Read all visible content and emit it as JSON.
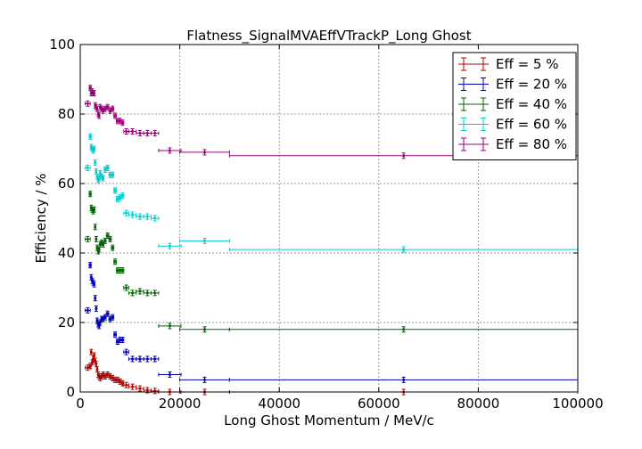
{
  "chart_data": {
    "type": "scatter",
    "title": "Flatness_SignalMVAEffVTrackP_Long Ghost",
    "xlabel": "Long Ghost Momentum / MeV/c",
    "ylabel": "Efficiency / %",
    "xlim": [
      0,
      100000
    ],
    "ylim": [
      0,
      100
    ],
    "xticks": [
      "0",
      "20000",
      "40000",
      "60000",
      "80000",
      "100000"
    ],
    "yticks": [
      "0",
      "20",
      "40",
      "60",
      "80",
      "100"
    ],
    "grid": true,
    "legend_position": "top-right",
    "series": [
      {
        "name": "Eff = 5 %",
        "color": "#b30000",
        "points": [
          [
            1500,
            7.0,
            500
          ],
          [
            2000,
            7.5,
            200
          ],
          [
            2200,
            11.5,
            100
          ],
          [
            2400,
            8.5,
            100
          ],
          [
            2600,
            9.5,
            100
          ],
          [
            2800,
            10.5,
            100
          ],
          [
            3000,
            9.0,
            100
          ],
          [
            3200,
            8.0,
            100
          ],
          [
            3400,
            6.5,
            100
          ],
          [
            3600,
            5.0,
            100
          ],
          [
            3800,
            4.5,
            100
          ],
          [
            4000,
            4.0,
            100
          ],
          [
            4300,
            4.5,
            150
          ],
          [
            4600,
            5.0,
            150
          ],
          [
            5000,
            4.5,
            200
          ],
          [
            5500,
            5.0,
            250
          ],
          [
            6000,
            4.5,
            250
          ],
          [
            6500,
            4.0,
            250
          ],
          [
            7000,
            3.5,
            250
          ],
          [
            7500,
            3.5,
            250
          ],
          [
            8000,
            3.0,
            250
          ],
          [
            8500,
            2.5,
            250
          ],
          [
            9250,
            2.0,
            500
          ],
          [
            10500,
            1.5,
            750
          ],
          [
            12000,
            1.0,
            750
          ],
          [
            13500,
            0.5,
            750
          ],
          [
            15000,
            0.3,
            750
          ],
          [
            18000,
            0.0,
            2250
          ],
          [
            25000,
            0.0,
            5000
          ],
          [
            65000,
            0.0,
            35000
          ]
        ]
      },
      {
        "name": "Eff = 20 %",
        "color": "#0000b3",
        "points": [
          [
            1500,
            23.5,
            500
          ],
          [
            2000,
            36.5,
            200
          ],
          [
            2200,
            33.0,
            100
          ],
          [
            2400,
            32.0,
            100
          ],
          [
            2600,
            31.5,
            100
          ],
          [
            2800,
            31.0,
            100
          ],
          [
            3000,
            27.0,
            100
          ],
          [
            3200,
            24.0,
            100
          ],
          [
            3400,
            20.5,
            100
          ],
          [
            3600,
            19.5,
            100
          ],
          [
            3800,
            19.0,
            100
          ],
          [
            4000,
            20.0,
            100
          ],
          [
            4300,
            21.0,
            150
          ],
          [
            4600,
            21.0,
            150
          ],
          [
            5000,
            21.5,
            200
          ],
          [
            5500,
            22.5,
            250
          ],
          [
            6000,
            21.0,
            250
          ],
          [
            6500,
            21.5,
            250
          ],
          [
            7000,
            16.5,
            250
          ],
          [
            7500,
            14.5,
            250
          ],
          [
            8000,
            15.0,
            250
          ],
          [
            8500,
            15.0,
            250
          ],
          [
            9250,
            11.5,
            500
          ],
          [
            10500,
            9.5,
            750
          ],
          [
            12000,
            9.5,
            750
          ],
          [
            13500,
            9.5,
            750
          ],
          [
            15000,
            9.5,
            750
          ],
          [
            18000,
            5.0,
            2250
          ],
          [
            25000,
            3.5,
            5000
          ],
          [
            65000,
            3.5,
            35000
          ]
        ]
      },
      {
        "name": "Eff = 40 %",
        "color": "#006400",
        "points": [
          [
            1500,
            44.0,
            500
          ],
          [
            2000,
            57.0,
            200
          ],
          [
            2200,
            53.0,
            100
          ],
          [
            2400,
            52.5,
            100
          ],
          [
            2600,
            52.0,
            100
          ],
          [
            2800,
            52.5,
            100
          ],
          [
            3000,
            47.5,
            100
          ],
          [
            3200,
            44.0,
            100
          ],
          [
            3400,
            41.5,
            100
          ],
          [
            3600,
            40.5,
            100
          ],
          [
            3800,
            41.0,
            100
          ],
          [
            4000,
            42.5,
            100
          ],
          [
            4300,
            43.0,
            150
          ],
          [
            4600,
            42.5,
            150
          ],
          [
            5000,
            43.5,
            200
          ],
          [
            5500,
            45.0,
            250
          ],
          [
            6000,
            44.0,
            250
          ],
          [
            6500,
            41.5,
            250
          ],
          [
            7000,
            37.5,
            250
          ],
          [
            7500,
            35.0,
            250
          ],
          [
            8000,
            35.0,
            250
          ],
          [
            8500,
            35.0,
            250
          ],
          [
            9250,
            30.0,
            500
          ],
          [
            10500,
            28.5,
            750
          ],
          [
            12000,
            29.0,
            750
          ],
          [
            13500,
            28.5,
            750
          ],
          [
            15000,
            28.5,
            750
          ],
          [
            18000,
            19.0,
            2250
          ],
          [
            25000,
            18.0,
            5000
          ],
          [
            65000,
            18.0,
            35000
          ]
        ]
      },
      {
        "name": "Eff = 60 %",
        "color": "#00cccc",
        "points": [
          [
            1500,
            64.5,
            500
          ],
          [
            2000,
            73.5,
            200
          ],
          [
            2200,
            70.5,
            100
          ],
          [
            2400,
            70.0,
            100
          ],
          [
            2600,
            69.5,
            100
          ],
          [
            2800,
            70.0,
            100
          ],
          [
            3000,
            66.0,
            100
          ],
          [
            3200,
            63.5,
            100
          ],
          [
            3400,
            62.0,
            100
          ],
          [
            3600,
            61.0,
            100
          ],
          [
            3800,
            61.5,
            100
          ],
          [
            4000,
            63.0,
            100
          ],
          [
            4300,
            62.0,
            150
          ],
          [
            4600,
            61.5,
            150
          ],
          [
            5000,
            64.0,
            200
          ],
          [
            5500,
            64.5,
            250
          ],
          [
            6000,
            62.5,
            250
          ],
          [
            6500,
            62.5,
            250
          ],
          [
            7000,
            58.0,
            250
          ],
          [
            7500,
            55.5,
            250
          ],
          [
            8000,
            56.0,
            250
          ],
          [
            8500,
            56.5,
            250
          ],
          [
            9250,
            51.5,
            500
          ],
          [
            10500,
            51.0,
            750
          ],
          [
            12000,
            50.5,
            750
          ],
          [
            13500,
            50.5,
            750
          ],
          [
            15000,
            50.0,
            750
          ],
          [
            18000,
            42.0,
            2250
          ],
          [
            25000,
            43.5,
            5000
          ],
          [
            65000,
            41.0,
            35000
          ]
        ]
      },
      {
        "name": "Eff = 80 %",
        "color": "#990077",
        "points": [
          [
            1500,
            83.0,
            500
          ],
          [
            2000,
            87.5,
            200
          ],
          [
            2200,
            86.0,
            100
          ],
          [
            2400,
            86.5,
            100
          ],
          [
            2600,
            86.0,
            100
          ],
          [
            2800,
            86.0,
            100
          ],
          [
            3000,
            82.5,
            100
          ],
          [
            3200,
            82.0,
            100
          ],
          [
            3400,
            81.5,
            100
          ],
          [
            3600,
            80.0,
            100
          ],
          [
            3800,
            79.5,
            100
          ],
          [
            4000,
            82.0,
            100
          ],
          [
            4300,
            81.5,
            150
          ],
          [
            4600,
            81.0,
            150
          ],
          [
            5000,
            81.5,
            200
          ],
          [
            5500,
            82.0,
            250
          ],
          [
            6000,
            81.0,
            250
          ],
          [
            6500,
            81.5,
            250
          ],
          [
            7000,
            79.5,
            250
          ],
          [
            7500,
            78.0,
            250
          ],
          [
            8000,
            78.0,
            250
          ],
          [
            8500,
            77.5,
            250
          ],
          [
            9250,
            75.0,
            500
          ],
          [
            10500,
            75.0,
            750
          ],
          [
            12000,
            74.5,
            750
          ],
          [
            13500,
            74.5,
            750
          ],
          [
            15000,
            74.5,
            750
          ],
          [
            18000,
            69.5,
            2250
          ],
          [
            25000,
            69.0,
            5000
          ],
          [
            65000,
            68.0,
            35000
          ]
        ]
      }
    ]
  }
}
